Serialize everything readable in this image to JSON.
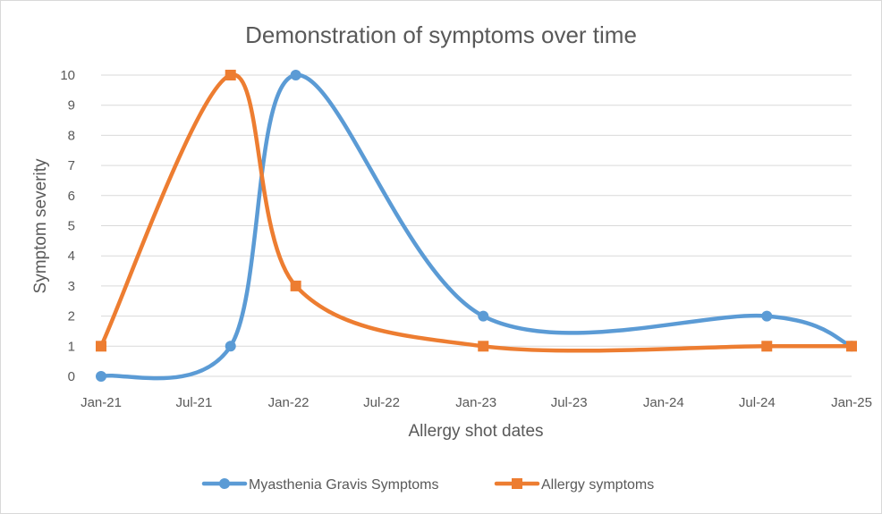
{
  "chart_data": {
    "type": "line",
    "title": "Demonstration of symptoms over time",
    "xlabel": "Allergy shot dates",
    "ylabel": "Symptom severity",
    "ylim": [
      0,
      10
    ],
    "xlim": [
      "2021-01-01",
      "2025-01-01"
    ],
    "x_tick_labels": [
      "Jan-21",
      "Jul-21",
      "Jan-22",
      "Jul-22",
      "Jan-23",
      "Jul-23",
      "Jan-24",
      "Jul-24",
      "Jan-25"
    ],
    "y_ticks": [
      0,
      1,
      2,
      3,
      4,
      5,
      6,
      7,
      8,
      9,
      10
    ],
    "grid": "horizontal",
    "legend_position": "bottom",
    "smooth": true,
    "series": [
      {
        "name": "Myasthenia Gravis Symptoms",
        "color": "#5B9BD5",
        "marker": "circle",
        "points": [
          {
            "x": "2021-01-01",
            "y": 0
          },
          {
            "x": "2021-09-10",
            "y": 1
          },
          {
            "x": "2022-01-15",
            "y": 10
          },
          {
            "x": "2023-01-15",
            "y": 2
          },
          {
            "x": "2024-07-20",
            "y": 2
          },
          {
            "x": "2025-01-01",
            "y": 1
          }
        ]
      },
      {
        "name": "Allergy symptoms",
        "color": "#ED7D31",
        "marker": "square",
        "points": [
          {
            "x": "2021-01-01",
            "y": 1
          },
          {
            "x": "2021-09-10",
            "y": 10
          },
          {
            "x": "2022-01-15",
            "y": 3
          },
          {
            "x": "2023-01-15",
            "y": 1
          },
          {
            "x": "2024-07-20",
            "y": 1
          },
          {
            "x": "2025-01-01",
            "y": 1
          }
        ]
      }
    ]
  }
}
